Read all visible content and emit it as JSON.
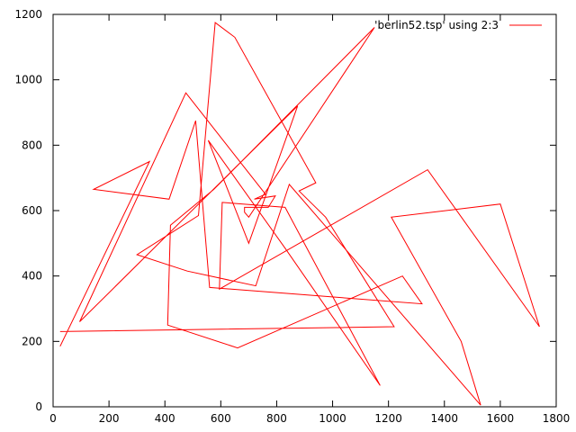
{
  "chart_data": {
    "type": "line",
    "title": "",
    "xlabel": "",
    "ylabel": "",
    "xlim": [
      0,
      1800
    ],
    "ylim": [
      0,
      1200
    ],
    "xticks": [
      0,
      200,
      400,
      600,
      800,
      1000,
      1200,
      1400,
      1600,
      1800
    ],
    "yticks": [
      0,
      200,
      400,
      600,
      800,
      1000,
      1200
    ],
    "grid": false,
    "legend_position": "top-right",
    "series": [
      {
        "name": "'berlin52.tsp' using 2:3",
        "color": "#ff0000",
        "points": [
          [
            25,
            185
          ],
          [
            345,
            750
          ],
          [
            145,
            665
          ],
          [
            415,
            635
          ],
          [
            510,
            875
          ],
          [
            560,
            365
          ],
          [
            1320,
            315
          ],
          [
            1250,
            400
          ],
          [
            660,
            180
          ],
          [
            410,
            250
          ],
          [
            420,
            555
          ],
          [
            575,
            665
          ],
          [
            1150,
            1160
          ],
          [
            700,
            580
          ],
          [
            685,
            595
          ],
          [
            685,
            610
          ],
          [
            770,
            610
          ],
          [
            795,
            645
          ],
          [
            720,
            635
          ],
          [
            760,
            650
          ],
          [
            475,
            960
          ],
          [
            95,
            260
          ],
          [
            875,
            920
          ],
          [
            700,
            500
          ],
          [
            555,
            815
          ],
          [
            830,
            485
          ],
          [
            1170,
            65
          ],
          [
            830,
            610
          ],
          [
            605,
            625
          ],
          [
            595,
            360
          ],
          [
            1340,
            725
          ],
          [
            1740,
            245
          ],
          [
            1600,
            620
          ],
          [
            1210,
            580
          ],
          [
            1460,
            200
          ],
          [
            1530,
            5
          ],
          [
            845,
            680
          ],
          [
            725,
            370
          ],
          [
            480,
            415
          ],
          [
            300,
            465
          ],
          [
            520,
            585
          ],
          [
            580,
            1175
          ],
          [
            650,
            1130
          ],
          [
            940,
            685
          ],
          [
            880,
            660
          ],
          [
            975,
            580
          ],
          [
            1220,
            245
          ],
          [
            25,
            230
          ]
        ]
      }
    ]
  }
}
